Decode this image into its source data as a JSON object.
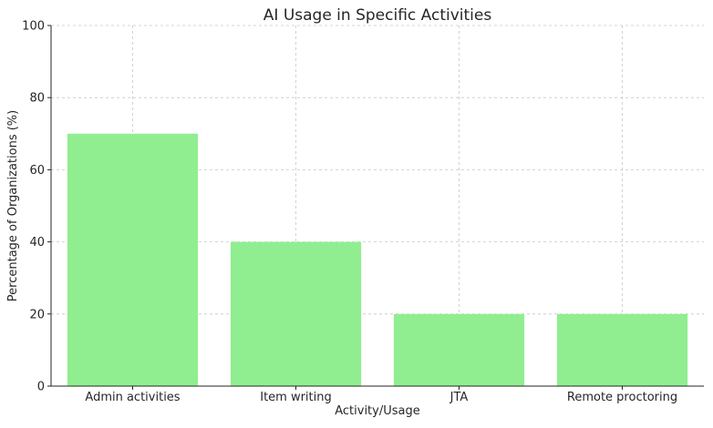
{
  "chart_data": {
    "type": "bar",
    "title": "AI Usage in Specific Activities",
    "xlabel": "Activity/Usage",
    "ylabel": "Percentage of Organizations (%)",
    "categories": [
      "Admin activities",
      "Item writing",
      "JTA",
      "Remote proctoring"
    ],
    "values": [
      70,
      40,
      20,
      20
    ],
    "ylim": [
      0,
      100
    ],
    "yticks": [
      0,
      20,
      40,
      60,
      80,
      100
    ],
    "grid": true,
    "bar_color": "#90ee90"
  }
}
